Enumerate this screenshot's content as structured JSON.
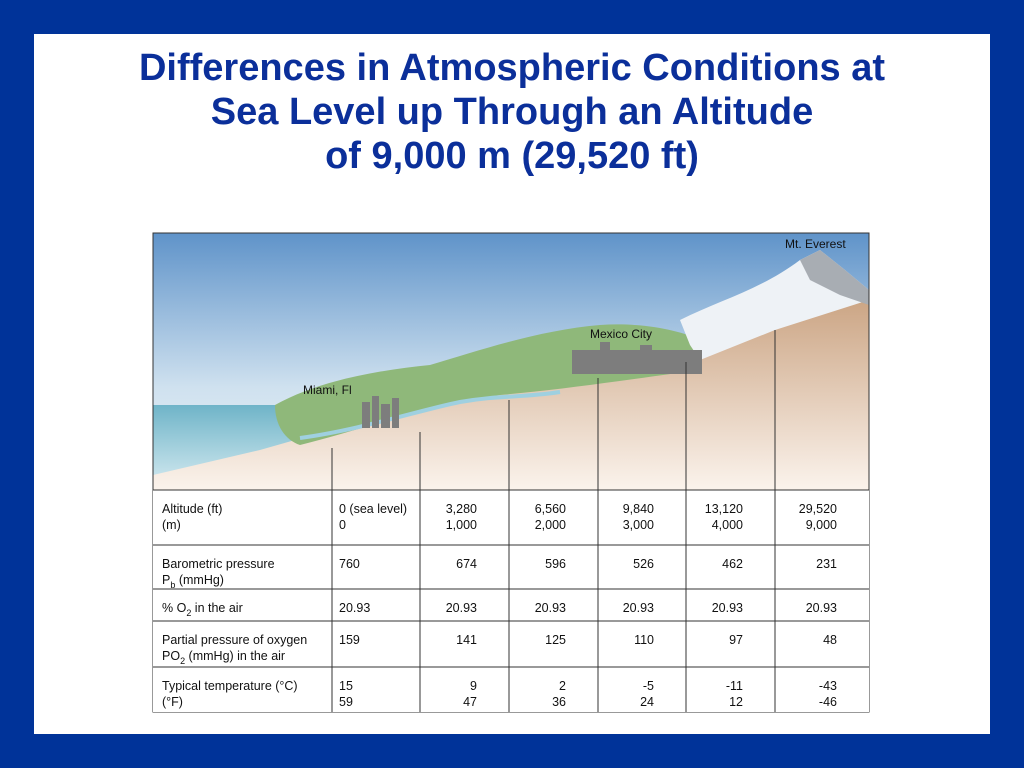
{
  "title": [
    "Differences in Atmospheric Conditions at",
    "Sea Level up Through an Altitude",
    "of 9,000 m (29,520 ft)"
  ],
  "illustration": {
    "labels": [
      "Miami, Fl",
      "Mexico City",
      "Mt. Everest"
    ]
  },
  "table": {
    "rows": [
      {
        "label": [
          "Altitude (ft)",
          "(m)"
        ],
        "cells": [
          [
            "0 (sea level)",
            "0"
          ],
          [
            "3,280",
            "1,000"
          ],
          [
            "6,560",
            "2,000"
          ],
          [
            "9,840",
            "3,000"
          ],
          [
            "13,120",
            "4,000"
          ],
          [
            "29,520",
            "9,000"
          ]
        ]
      },
      {
        "label": [
          "Barometric pressure",
          {
            "base": "P",
            "sub": "b",
            "after": " (mmHg)"
          }
        ],
        "cells": [
          [
            "760"
          ],
          [
            "674"
          ],
          [
            "596"
          ],
          [
            "526"
          ],
          [
            "462"
          ],
          [
            "231"
          ]
        ]
      },
      {
        "label": [
          {
            "base": "% O",
            "sub": "2",
            "after": "  in the air"
          }
        ],
        "cells": [
          [
            "20.93"
          ],
          [
            "20.93"
          ],
          [
            "20.93"
          ],
          [
            "20.93"
          ],
          [
            "20.93"
          ],
          [
            "20.93"
          ]
        ]
      },
      {
        "label": [
          "Partial pressure of oxygen",
          {
            "base": "PO",
            "sub": "2",
            "after": " (mmHg) in the air"
          }
        ],
        "cells": [
          [
            "159"
          ],
          [
            "141"
          ],
          [
            "125"
          ],
          [
            "110"
          ],
          [
            "97"
          ],
          [
            "48"
          ]
        ]
      },
      {
        "label": [
          "Typical temperature (°C)",
          " (°F)"
        ],
        "cells": [
          [
            "15",
            "59"
          ],
          [
            "9",
            "47"
          ],
          [
            "2",
            "36"
          ],
          [
            "-5",
            "24"
          ],
          [
            "-11",
            "12"
          ],
          [
            "-43",
            "-46"
          ]
        ]
      }
    ]
  }
}
